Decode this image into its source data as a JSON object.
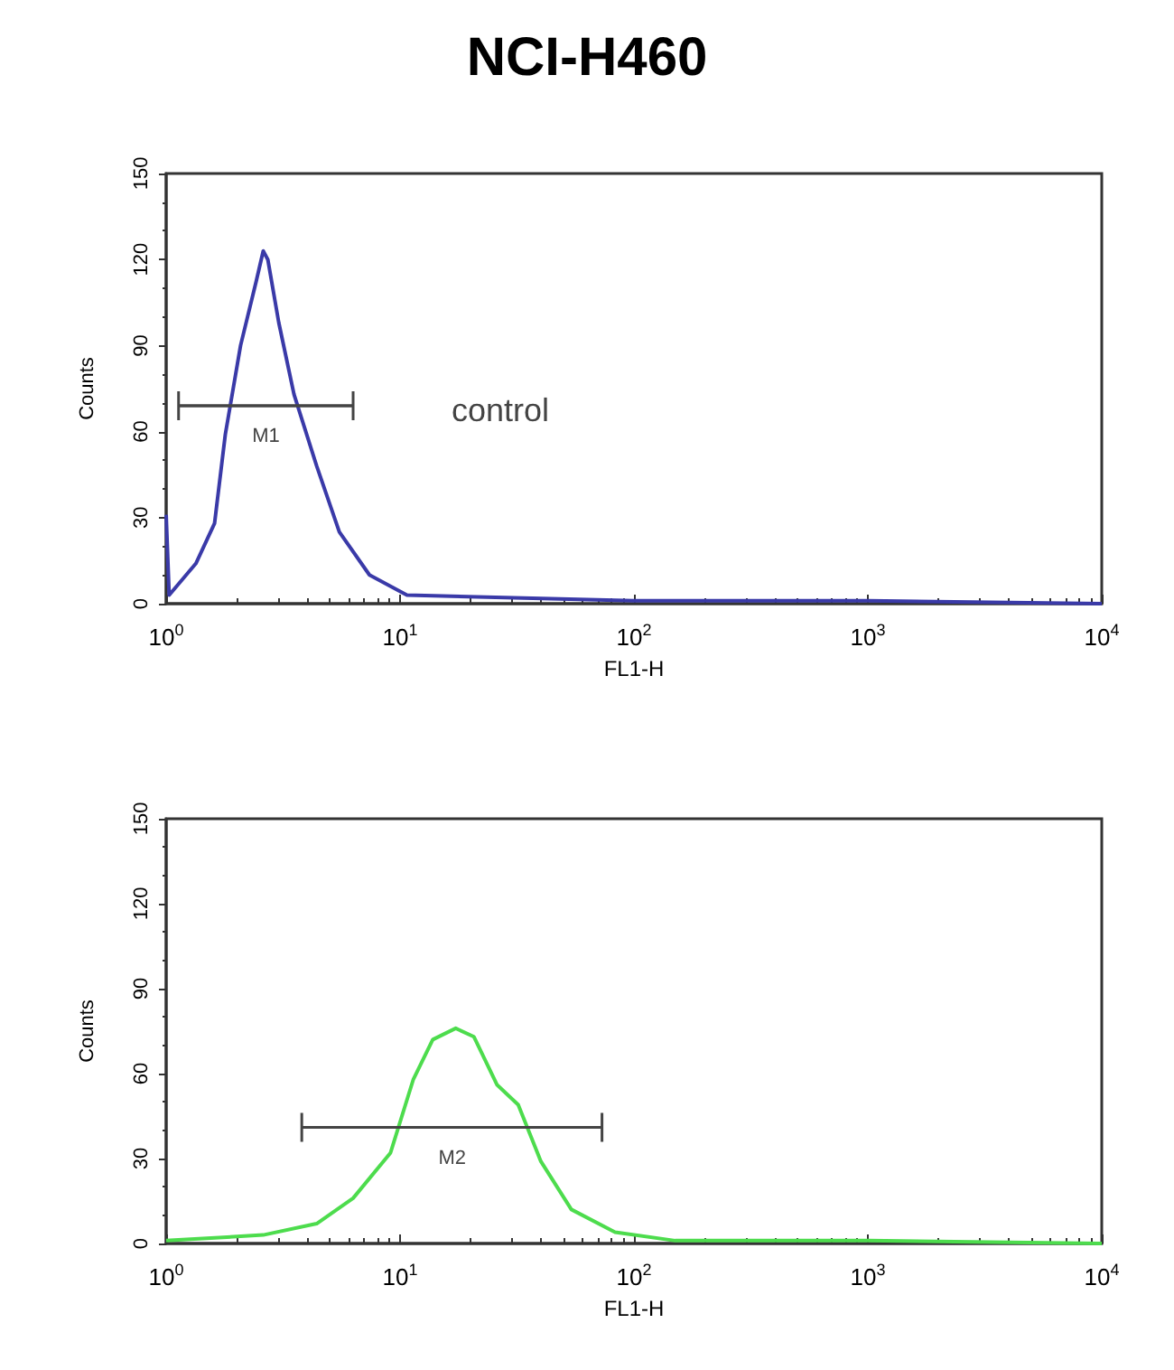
{
  "chart_data": [
    {
      "type": "line",
      "title": "NCI-H460",
      "xlabel": "FL1-H",
      "ylabel": "Counts",
      "log": "x",
      "grid": false,
      "xlim": [
        1,
        10000
      ],
      "xticks": [
        {
          "value": 1,
          "label": "10$^{0}$"
        },
        {
          "value": 10,
          "label": "10$^{1}$"
        },
        {
          "value": 100,
          "label": "10$^{2}$"
        },
        {
          "value": 1000,
          "label": "10$^{3}$"
        },
        {
          "value": 10000,
          "label": "10$^{4}$"
        }
      ],
      "ylim": [
        0,
        150
      ],
      "yticks": [
        0,
        30,
        60,
        90,
        120,
        150
      ],
      "series": [
        {
          "color": "#3a3aa8",
          "marker": "none",
          "x": [
            1,
            1.03,
            1.34,
            1.61,
            1.79,
            2.08,
            2.42,
            2.6,
            2.72,
            3.03,
            3.52,
            4.4,
            5.5,
            7.4,
            10.7,
            100,
            1000,
            10000
          ],
          "values": [
            31,
            3,
            14,
            28,
            59,
            90,
            112,
            123,
            120,
            98,
            73,
            48,
            25,
            10,
            3,
            1,
            1,
            0
          ]
        },
        {
          "type": "line",
          "color": "#444444",
          "x": [
            1.13,
            6.3
          ],
          "values": [
            69,
            69
          ]
        }
      ],
      "annotations": [
        {
          "text": "M1",
          "x": 2.67,
          "y": 69
        },
        "control"
      ]
    },
    {
      "type": "line",
      "xlabel": "FL1-H",
      "ylabel": "Counts",
      "log": "x",
      "grid": false,
      "xlim": [
        1,
        10000
      ],
      "xticks": [
        {
          "value": 1,
          "label": "10$^{0}$"
        },
        {
          "value": 10,
          "label": "10$^{1}$"
        },
        {
          "value": 100,
          "label": "10$^{2}$"
        },
        {
          "value": 1000,
          "label": "10$^{3}$"
        },
        {
          "value": 10000,
          "label": "10$^{4}$"
        }
      ],
      "ylim": [
        0,
        150
      ],
      "yticks": [
        0,
        30,
        60,
        90,
        120,
        150
      ],
      "series": [
        {
          "color": "#4ddc4d",
          "marker": "none",
          "x": [
            1,
            2.6,
            4.4,
            6.3,
            9.1,
            11.4,
            13.8,
            17.3,
            20.7,
            26,
            32,
            40,
            54,
            83,
            150,
            1000,
            10000
          ],
          "values": [
            1,
            3,
            7,
            16,
            32,
            58,
            72,
            76,
            73,
            56,
            49,
            29,
            12,
            4,
            1,
            1,
            0
          ]
        },
        {
          "type": "line",
          "color": "#444444",
          "x": [
            3.8,
            73
          ],
          "values": [
            41,
            41
          ]
        }
      ],
      "annotations": [
        {
          "text": "M2",
          "x": 16.7,
          "y": 41
        }
      ]
    }
  ]
}
